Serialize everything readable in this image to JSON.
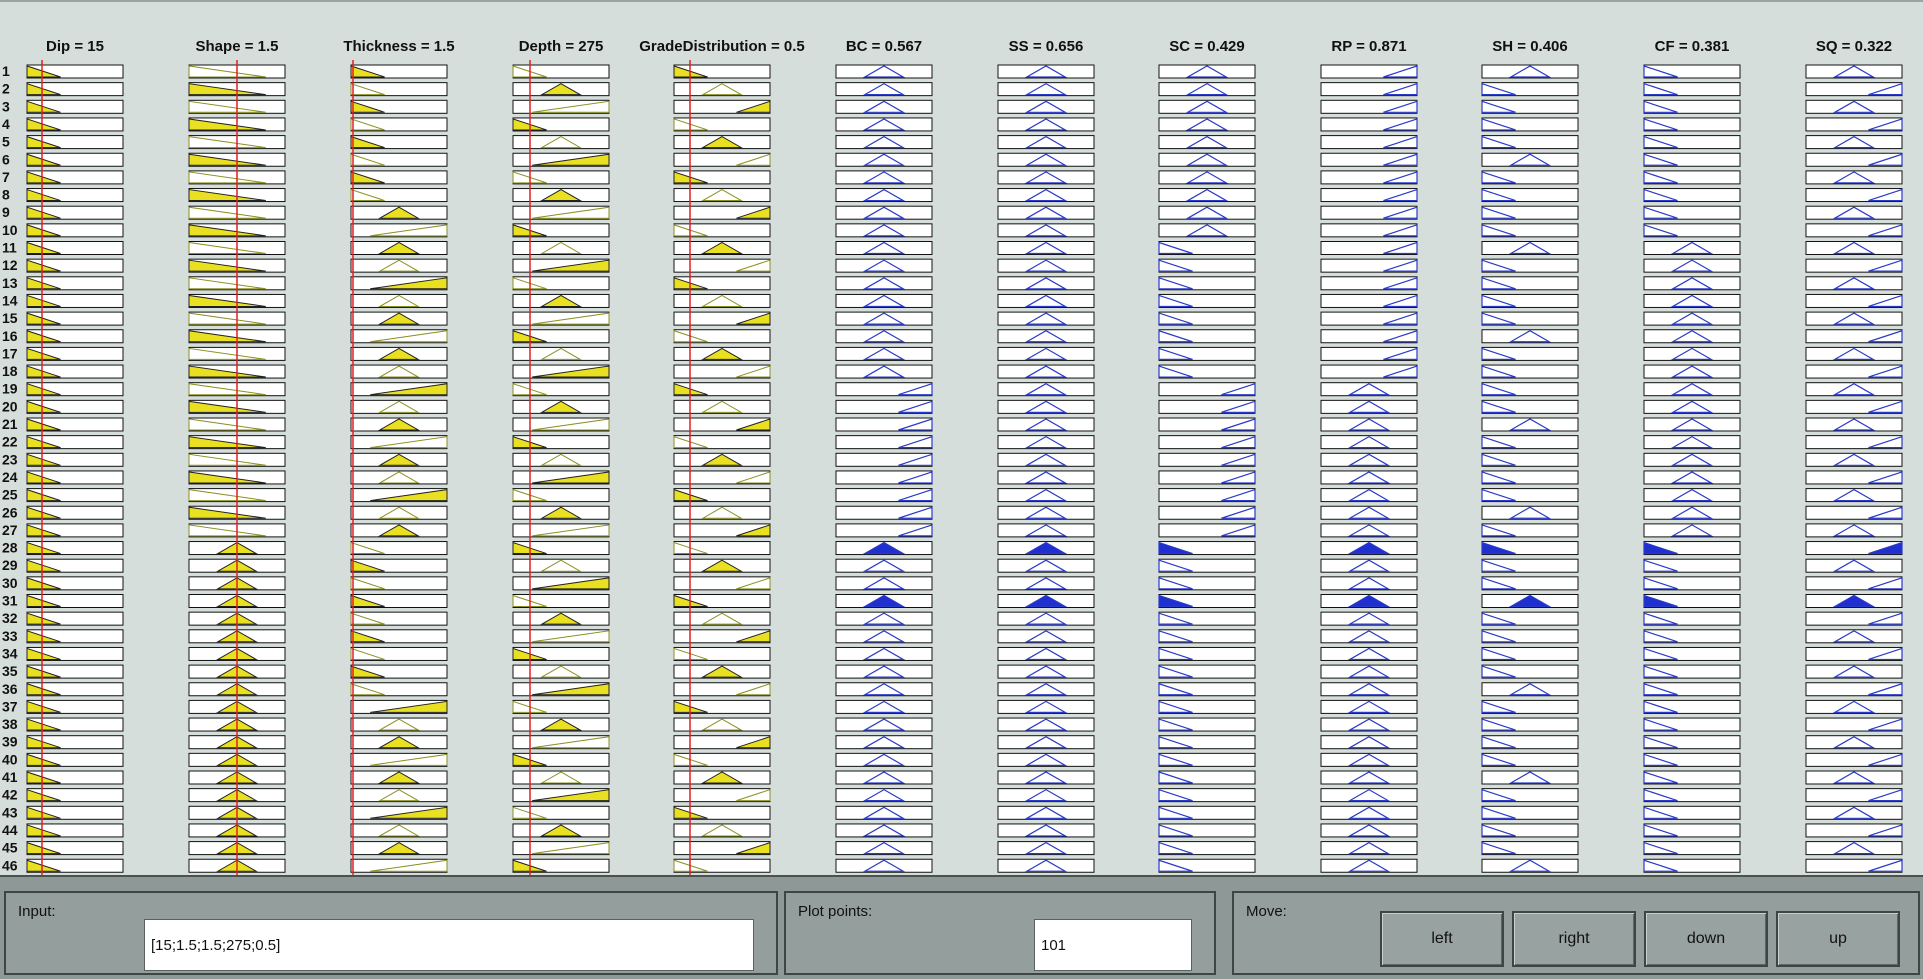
{
  "rule_viewer": {
    "columns": [
      {
        "title": "Dip = 15",
        "kind": "input"
      },
      {
        "title": "Shape = 1.5",
        "kind": "input"
      },
      {
        "title": "Thickness = 1.5",
        "kind": "input"
      },
      {
        "title": "Depth = 275",
        "kind": "input"
      },
      {
        "title": "GradeDistribution = 0.5",
        "kind": "input"
      },
      {
        "title": "BC = 0.567",
        "kind": "output"
      },
      {
        "title": "SS = 0.656",
        "kind": "output"
      },
      {
        "title": "SC = 0.429",
        "kind": "output"
      },
      {
        "title": "RP = 0.871",
        "kind": "output"
      },
      {
        "title": "SH = 0.406",
        "kind": "output"
      },
      {
        "title": "CF = 0.381",
        "kind": "output"
      },
      {
        "title": "SQ = 0.322",
        "kind": "output"
      }
    ],
    "row_numbers": [
      "1",
      "2",
      "3",
      "4",
      "5",
      "6",
      "7",
      "8",
      "9",
      "10",
      "11",
      "12",
      "13",
      "14",
      "15",
      "16",
      "17",
      "18",
      "19",
      "20",
      "21",
      "22",
      "23",
      "24",
      "25",
      "26",
      "27",
      "28",
      "29",
      "30",
      "31",
      "32",
      "33",
      "34",
      "35",
      "36",
      "37",
      "38",
      "39",
      "40",
      "41",
      "42",
      "43",
      "44",
      "45",
      "46"
    ],
    "colors": {
      "input_fill": "#e8e020",
      "input_line": "#8a9020",
      "input_marker": "#e02020",
      "output_line": "#2a3ac8",
      "output_fill": "#1f2fd0"
    }
  },
  "controls": {
    "input_label": "Input:",
    "input_value": "[15;1.5;1.5;275;0.5]",
    "plot_points_label": "Plot points:",
    "plot_points_value": "101",
    "move_label": "Move:",
    "buttons": [
      "left",
      "right",
      "down",
      "up"
    ]
  }
}
